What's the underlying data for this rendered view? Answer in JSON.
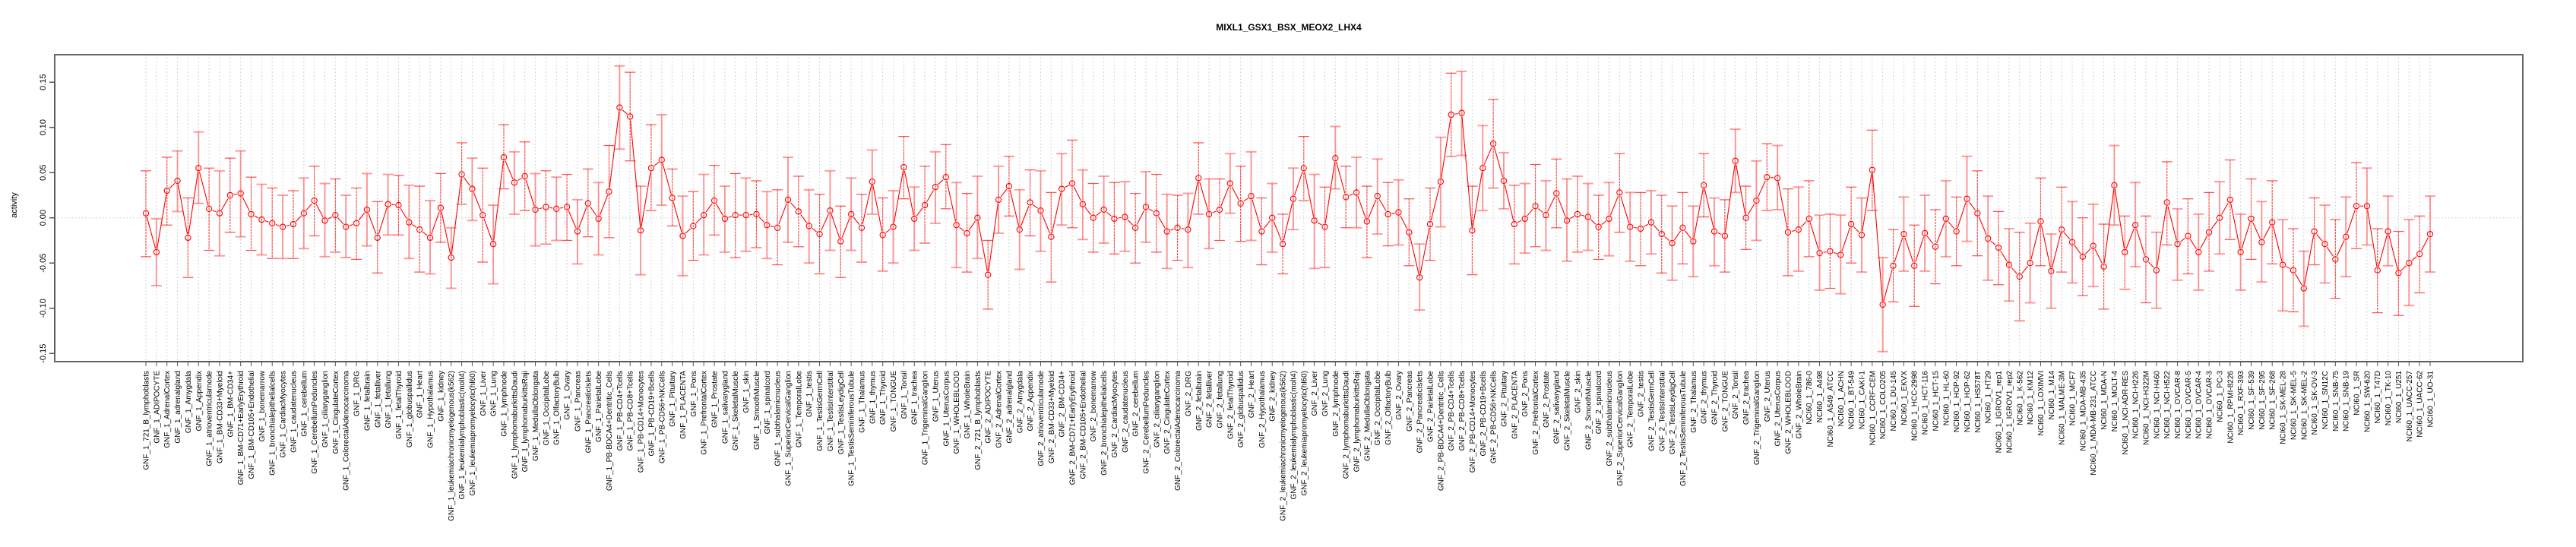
{
  "chart_data": {
    "type": "line",
    "title": "MIXL1_GSX1_BSX_MEOX2_LHX4",
    "xlabel": "",
    "ylabel": "activity",
    "ylim": [
      -0.165,
      0.18
    ],
    "yticks": [
      -0.15,
      -0.1,
      -0.05,
      0.0,
      0.05,
      0.1,
      0.15
    ],
    "ytick_labels": [
      "-0.15",
      "-0.10",
      "-0.05",
      "0.00",
      "0.05",
      "0.10",
      "0.15"
    ],
    "grid": "vertical dotted lines at every category, horizontal dotted line at 0",
    "colors": {
      "series": "#ff0000",
      "errorbar": "#ff3b3b",
      "grid": "#c8c8c8",
      "axis": "#555555"
    },
    "categories": [
      "GNF_1_721_B_lymphoblasts",
      "GNF_1_ADIPOCYTE",
      "GNF_1_AdrenalCortex",
      "GNF_1_adrenalgland",
      "GNF_1_Amygdala",
      "GNF_1_Appendix",
      "GNF_1_atrioventricularnode",
      "GNF_1_BM-CD33+Myeloid",
      "GNF_1_BM-CD34+",
      "GNF_1_BM-CD71+EarlyErythroid",
      "GNF_1_BM-CD105+Endothelial",
      "GNF_1_bonemarrow",
      "GNF_1_bronchialepithelialcells",
      "GNF_1_CardiacMyocytes",
      "GNF_1_caudatenucleus",
      "GNF_1_cerebellum",
      "GNF_1_CerebellumPeduncles",
      "GNF_1_ciliaryganglion",
      "GNF_1_CingulateCortex",
      "GNF_1_ColorectalAdenocarcinoma",
      "GNF_1_DRG",
      "GNF_1_fetalbrain",
      "GNF_1_fetalliver",
      "GNF_1_fetallung",
      "GNF_1_fetalThyroid",
      "GNF_1_globuspallidus",
      "GNF_1_Heart",
      "GNF_1_Hypothalamus",
      "GNF_1_kidney",
      "GNF_1_leukemiachronicmyelogenous(k562)",
      "GNF_1_leukemialymphoblastic(molt4)",
      "GNF_1_leukemiapromyelocytic(hl60)",
      "GNF_1_Liver",
      "GNF_1_Lung",
      "GNF_1_lymphnode",
      "GNF_1_lymphomaburkittsDaudi",
      "GNF_1_lymphomaburkittsRaji",
      "GNF_1_MedullaOblongata",
      "GNF_1_OccipitalLobe",
      "GNF_1_OlfactoryBulb",
      "GNF_1_Ovary",
      "GNF_1_Pancreas",
      "GNF_1_PancreaticIslets",
      "GNF_1_ParietalLobe",
      "GNF_1_PB-BDCA4+Dentritic_Cells",
      "GNF_1_PB-CD4+Tcells",
      "GNF_1_PB-CD8+Tcells",
      "GNF_1_PB-CD14+Monocytes",
      "GNF_1_PB-CD19+Bcells",
      "GNF_1_PB-CD56+NKCells",
      "GNF_1_Pituitary",
      "GNF_1_PLACENTA",
      "GNF_1_Pons",
      "GNF_1_PrefrontalCortex",
      "GNF_1_Prostate",
      "GNF_1_salivarygland",
      "GNF_1_SkeletalMuscle",
      "GNF_1_skin",
      "GNF_1_SmoothMuscle",
      "GNF_1_spinalcord",
      "GNF_1_subthalamicnucleus",
      "GNF_1_SuperiorCervicalGanglion",
      "GNF_1_TemporalLobe",
      "GNF_1_testis",
      "GNF_1_TestisGermCell",
      "GNF_1_TestisInterstitial",
      "GNF_1_TestisLeydigCell",
      "GNF_1_TestisSeminiferousTubule",
      "GNF_1_Thalamus",
      "GNF_1_thymus",
      "GNF_1_Thyroid",
      "GNF_1_TONGUE",
      "GNF_1_Tonsil",
      "GNF_1_trachea",
      "GNF_1_TrigeminalGanglion",
      "GNF_1_Uterus",
      "GNF_1_UterusCorpus",
      "GNF_1_WHOLEBLOOD",
      "GNF_1_WholeBrain",
      "GNF_2_721_B_lymphoblasts",
      "GNF_2_ADIPOCYTE",
      "GNF_2_AdrenalCortex",
      "GNF_2_adrenalgland",
      "GNF_2_Amygdala",
      "GNF_2_Appendix",
      "GNF_2_atrioventricularnode",
      "GNF_2_BM-CD33+Myeloid",
      "GNF_2_BM-CD34+",
      "GNF_2_BM-CD71+EarlyErythroid",
      "GNF_2_BM-CD105+Endothelial",
      "GNF_2_bonemarrow",
      "GNF_2_bronchialepithelialcells",
      "GNF_2_CardiacMyocytes",
      "GNF_2_caudatenucleus",
      "GNF_2_cerebellum",
      "GNF_2_CerebellumPeduncles",
      "GNF_2_ciliaryganglion",
      "GNF_2_CingulateCortex",
      "GNF_2_ColorectalAdenocarcinoma",
      "GNF_2_DRG",
      "GNF_2_fetalbrain",
      "GNF_2_fetalliver",
      "GNF_2_fetallung",
      "GNF_2_fetalThyroid",
      "GNF_2_globuspallidus",
      "GNF_2_Heart",
      "GNF_2_Hypothalamus",
      "GNF_2_kidney",
      "GNF_2_leukemiachronicmyelogenous(k562)",
      "GNF_2_leukemialymphoblastic(molt4)",
      "GNF_2_leukemiapromyelocytic(hl60)",
      "GNF_2_Liver",
      "GNF_2_Lung",
      "GNF_2_lymphnode",
      "GNF_2_lymphomaburkittsDaudi",
      "GNF_2_lymphomaburkittsRaji",
      "GNF_2_MedullaOblongata",
      "GNF_2_OccipitalLobe",
      "GNF_2_OlfactoryBulb",
      "GNF_2_Ovary",
      "GNF_2_Pancreas",
      "GNF_2_PancreaticIslets",
      "GNF_2_ParietalLobe",
      "GNF_2_PB-BDCA4+Dentritic_Cells",
      "GNF_2_PB-CD4+Tcells",
      "GNF_2_PB-CD8+Tcells",
      "GNF_2_PB-CD14+Monocytes",
      "GNF_2_PB-CD19+Bcells",
      "GNF_2_PB-CD56+NKCells",
      "GNF_2_Pituitary",
      "GNF_2_PLACENTA",
      "GNF_2_Pons",
      "GNF_2_PrefrontalCortex",
      "GNF_2_Prostate",
      "GNF_2_salivarygland",
      "GNF_2_SkeletalMuscle",
      "GNF_2_skin",
      "GNF_2_SmoothMuscle",
      "GNF_2_spinalcord",
      "GNF_2_subthalamicnucleus",
      "GNF_2_SuperiorCervicalGanglion",
      "GNF_2_TemporalLobe",
      "GNF_2_testis",
      "GNF_2_TestisGermCell",
      "GNF_2_TestisInterstitial",
      "GNF_2_TestisLeydigCell",
      "GNF_2_TestisSeminiferousTubule",
      "GNF_2_Thalamus",
      "GNF_2_thymus",
      "GNF_2_Thyroid",
      "GNF_2_TONGUE",
      "GNF_2_Tonsil",
      "GNF_2_trachea",
      "GNF_2_TrigeminalGanglion",
      "GNF_2_Uterus",
      "GNF_2_UterusCorpus",
      "GNF_2_WHOLEBLOOD",
      "GNF_2_WholeBrain",
      "NCI60_1_786-0",
      "NCI60_1_A498",
      "NCI60_1_A549_ATCC",
      "NCI60_1_ACHN",
      "NCI60_1_BT-549",
      "NCI60_1_CAKI-1",
      "NCI60_1_CCRF-CEM",
      "NCI60_1_COLO205",
      "NCI60_1_DU-145",
      "NCI60_1_EKVX",
      "NCI60_1_HCC-2998",
      "NCI60_1_HCT-116",
      "NCI60_1_HCT-15",
      "NCI60_1_HL-60",
      "NCI60_1_HOP-92",
      "NCI60_1_HOP-62",
      "NCI60_1_HS578T",
      "NCI60_1_HT29",
      "NCI60_1_IGROV1_rep1",
      "NCI60_1_IGROV1_rep2",
      "NCI60_1_K-562",
      "NCI60_1_KM12",
      "NCI60_1_LOXIMVI",
      "NCI60_1_M14",
      "NCI60_1_MALME-3M",
      "NCI60_1_MCF7",
      "NCI60_1_MDA-MB-435",
      "NCI60_1_MDA-MB-231_ATCC",
      "NCI60_1_MDA-N",
      "NCI60_1_MOLT-4",
      "NCI60_1_NCI-ADR-RES",
      "NCI60_1_NCI-H226",
      "NCI60_1_NCI-H322M",
      "NCI60_1_NCI-H460",
      "NCI60_1_NCI-H522",
      "NCI60_1_OVCAR-8",
      "NCI60_1_OVCAR-5",
      "NCI60_1_OVCAR-4",
      "NCI60_1_OVCAR-3",
      "NCI60_1_PC-3",
      "NCI60_1_RPMI-8226",
      "NCI60_1_RXF-393",
      "NCI60_1_SF-539",
      "NCI60_1_SF-295",
      "NCI60_1_SF-268",
      "NCI60_1_SK-MEL-28",
      "NCI60_1_SK-MEL-5",
      "NCI60_1_SK-MEL-2",
      "NCI60_1_SK-OV-3",
      "NCI60_1_SN12C",
      "NCI60_1_SNB-75",
      "NCI60_1_SNB-19",
      "NCI60_1_SR",
      "NCI60_1_SW-620",
      "NCI60_1_T47D",
      "NCI60_1_TK-10",
      "NCI60_1_U251",
      "NCI60_1_UACC-257",
      "NCI60_1_UACC-62",
      "NCI60_1_UO-31"
    ],
    "series": [
      {
        "name": "mean",
        "values": [
          0.005,
          -0.038,
          0.03,
          0.041,
          -0.022,
          0.055,
          0.01,
          0.005,
          0.025,
          0.027,
          0.004,
          -0.002,
          -0.006,
          -0.01,
          -0.007,
          0.005,
          0.019,
          -0.003,
          0.003,
          -0.01,
          -0.006,
          0.009,
          -0.022,
          0.015,
          0.014,
          -0.005,
          -0.013,
          -0.022,
          0.011,
          -0.044,
          0.048,
          0.032,
          0.003,
          -0.029,
          0.067,
          0.039,
          0.046,
          0.009,
          0.012,
          0.01,
          0.012,
          -0.015,
          0.016,
          -0.001,
          0.029,
          0.122,
          0.112,
          -0.014,
          0.055,
          0.064,
          0.022,
          -0.02,
          -0.009,
          0.003,
          0.019,
          -0.001,
          0.003,
          0.003,
          0.004,
          -0.008,
          -0.011,
          0.02,
          0.007,
          -0.009,
          -0.018,
          0.008,
          -0.026,
          0.004,
          -0.011,
          0.04,
          -0.019,
          -0.01,
          0.056,
          -0.001,
          0.014,
          0.034,
          0.045,
          -0.008,
          -0.017,
          0.0,
          -0.063,
          0.02,
          0.035,
          -0.013,
          0.017,
          0.008,
          -0.021,
          0.032,
          0.038,
          0.015,
          0.0,
          0.009,
          -0.001,
          0.001,
          -0.011,
          0.012,
          0.005,
          -0.015,
          -0.011,
          -0.013,
          0.044,
          0.004,
          0.009,
          0.038,
          0.016,
          0.024,
          -0.015,
          0.0,
          -0.029,
          0.021,
          0.055,
          -0.003,
          -0.01,
          0.066,
          0.023,
          0.028,
          -0.004,
          0.024,
          0.004,
          0.006,
          -0.016,
          -0.066,
          -0.007,
          0.04,
          0.114,
          0.116,
          -0.014,
          0.055,
          0.082,
          0.041,
          -0.007,
          -0.001,
          0.013,
          0.003,
          0.027,
          -0.003,
          0.004,
          0.001,
          -0.01,
          -0.001,
          0.028,
          -0.01,
          -0.012,
          -0.005,
          -0.018,
          -0.028,
          -0.011,
          -0.026,
          0.036,
          -0.015,
          -0.02,
          0.063,
          0.0,
          0.019,
          0.045,
          0.044,
          -0.016,
          -0.013,
          -0.001,
          -0.039,
          -0.037,
          -0.041,
          -0.007,
          -0.019,
          0.053,
          -0.096,
          -0.053,
          -0.018,
          -0.053,
          -0.017,
          -0.032,
          -0.001,
          -0.015,
          0.021,
          0.005,
          -0.023,
          -0.033,
          -0.052,
          -0.065,
          -0.05,
          -0.004,
          -0.059,
          -0.013,
          -0.027,
          -0.043,
          -0.031,
          -0.054,
          0.036,
          -0.038,
          -0.008,
          -0.046,
          -0.058,
          0.017,
          -0.029,
          -0.02,
          -0.038,
          -0.016,
          0.0,
          0.02,
          -0.038,
          -0.001,
          -0.027,
          -0.005,
          -0.052,
          -0.058,
          -0.078,
          -0.015,
          -0.029,
          -0.046,
          -0.021,
          0.013,
          0.013,
          -0.058,
          -0.015,
          -0.061,
          -0.05,
          -0.04,
          -0.018
        ]
      },
      {
        "name": "upper",
        "values": [
          0.052,
          -0.001,
          0.067,
          0.074,
          0.022,
          0.095,
          0.055,
          0.052,
          0.066,
          0.074,
          0.045,
          0.037,
          0.033,
          0.025,
          0.03,
          0.044,
          0.057,
          0.038,
          0.043,
          0.025,
          0.033,
          0.049,
          0.018,
          0.048,
          0.047,
          0.036,
          0.035,
          0.019,
          0.049,
          -0.011,
          0.083,
          0.066,
          0.055,
          0.014,
          0.103,
          0.073,
          0.084,
          0.049,
          0.052,
          0.045,
          0.048,
          0.02,
          0.054,
          0.039,
          0.08,
          0.168,
          0.161,
          0.035,
          0.103,
          0.114,
          0.054,
          0.024,
          0.029,
          0.048,
          0.058,
          0.035,
          0.049,
          0.044,
          0.041,
          0.029,
          0.031,
          0.067,
          0.046,
          0.031,
          0.026,
          0.052,
          0.013,
          0.044,
          0.026,
          0.075,
          0.022,
          0.03,
          0.09,
          0.034,
          0.057,
          0.073,
          0.081,
          0.039,
          0.027,
          0.046,
          -0.025,
          0.057,
          0.068,
          0.031,
          0.053,
          0.052,
          0.028,
          0.071,
          0.086,
          0.053,
          0.038,
          0.046,
          0.039,
          0.04,
          0.027,
          0.051,
          0.048,
          0.026,
          0.025,
          0.027,
          0.083,
          0.043,
          0.043,
          0.071,
          0.057,
          0.073,
          0.022,
          0.038,
          0.004,
          0.055,
          0.09,
          0.048,
          0.034,
          0.101,
          0.057,
          0.067,
          0.035,
          0.065,
          0.039,
          0.042,
          0.021,
          -0.029,
          0.033,
          0.089,
          0.16,
          0.162,
          0.035,
          0.102,
          0.131,
          0.072,
          0.036,
          0.038,
          0.059,
          0.041,
          0.065,
          0.043,
          0.046,
          0.038,
          0.025,
          0.039,
          0.071,
          0.028,
          0.028,
          0.03,
          0.025,
          0.013,
          0.028,
          0.013,
          0.071,
          0.022,
          0.02,
          0.098,
          0.035,
          0.063,
          0.082,
          0.08,
          0.032,
          0.034,
          0.041,
          0.003,
          0.004,
          0.003,
          0.034,
          0.022,
          0.097,
          -0.044,
          -0.013,
          0.023,
          -0.008,
          0.025,
          0.009,
          0.041,
          0.023,
          0.068,
          0.052,
          0.024,
          0.007,
          -0.012,
          -0.016,
          -0.006,
          0.044,
          -0.018,
          0.034,
          0.018,
          0.0,
          0.015,
          -0.007,
          0.08,
          0.002,
          0.039,
          0.002,
          -0.016,
          0.062,
          0.01,
          0.021,
          0.004,
          0.028,
          0.04,
          0.064,
          0.004,
          0.043,
          0.018,
          0.041,
          -0.002,
          -0.012,
          -0.037,
          0.022,
          0.014,
          -0.002,
          0.023,
          0.061,
          0.055,
          -0.012,
          0.024,
          -0.015,
          -0.002,
          0.002,
          0.024
        ]
      },
      {
        "name": "lower",
        "values": [
          -0.043,
          -0.075,
          -0.008,
          0.007,
          -0.066,
          0.016,
          -0.036,
          -0.042,
          -0.016,
          -0.021,
          -0.036,
          -0.041,
          -0.045,
          -0.045,
          -0.045,
          -0.034,
          -0.02,
          -0.043,
          -0.038,
          -0.044,
          -0.046,
          -0.031,
          -0.061,
          -0.019,
          -0.019,
          -0.045,
          -0.06,
          -0.062,
          -0.027,
          -0.078,
          0.015,
          -0.003,
          -0.049,
          -0.073,
          0.032,
          0.004,
          0.008,
          -0.031,
          -0.029,
          -0.025,
          -0.025,
          -0.051,
          -0.021,
          -0.041,
          -0.022,
          0.076,
          0.063,
          -0.063,
          0.008,
          0.014,
          -0.009,
          -0.064,
          -0.047,
          -0.041,
          -0.019,
          -0.038,
          -0.044,
          -0.037,
          -0.033,
          -0.045,
          -0.052,
          -0.027,
          -0.032,
          -0.05,
          -0.062,
          -0.036,
          -0.066,
          -0.036,
          -0.049,
          0.004,
          -0.059,
          -0.05,
          0.021,
          -0.036,
          -0.028,
          -0.006,
          0.01,
          -0.055,
          -0.06,
          -0.045,
          -0.101,
          -0.017,
          0.002,
          -0.057,
          -0.02,
          -0.037,
          -0.071,
          -0.008,
          -0.011,
          -0.024,
          -0.038,
          -0.028,
          -0.04,
          -0.037,
          -0.05,
          -0.027,
          -0.038,
          -0.056,
          -0.047,
          -0.055,
          0.004,
          -0.034,
          -0.025,
          0.005,
          -0.026,
          -0.025,
          -0.052,
          -0.038,
          -0.062,
          -0.013,
          0.019,
          -0.056,
          -0.055,
          0.032,
          -0.011,
          -0.011,
          -0.044,
          -0.018,
          -0.031,
          -0.03,
          -0.053,
          -0.102,
          -0.047,
          -0.01,
          0.068,
          0.069,
          -0.063,
          0.008,
          0.033,
          0.01,
          -0.051,
          -0.039,
          -0.032,
          -0.036,
          -0.011,
          -0.048,
          -0.038,
          -0.036,
          -0.046,
          -0.042,
          -0.016,
          -0.048,
          -0.053,
          -0.04,
          -0.061,
          -0.069,
          -0.051,
          -0.065,
          0.001,
          -0.053,
          -0.06,
          0.028,
          -0.035,
          -0.025,
          0.008,
          0.009,
          -0.064,
          -0.059,
          -0.043,
          -0.08,
          -0.078,
          -0.084,
          -0.05,
          -0.06,
          0.008,
          -0.148,
          -0.093,
          -0.059,
          -0.098,
          -0.059,
          -0.073,
          -0.043,
          -0.053,
          -0.026,
          -0.042,
          -0.069,
          -0.074,
          -0.092,
          -0.114,
          -0.094,
          -0.053,
          -0.1,
          -0.06,
          -0.072,
          -0.086,
          -0.076,
          -0.101,
          -0.008,
          -0.079,
          -0.054,
          -0.094,
          -0.1,
          -0.03,
          -0.069,
          -0.062,
          -0.08,
          -0.059,
          -0.04,
          -0.024,
          -0.08,
          -0.046,
          -0.071,
          -0.051,
          -0.103,
          -0.104,
          -0.12,
          -0.052,
          -0.072,
          -0.089,
          -0.065,
          -0.034,
          -0.03,
          -0.105,
          -0.053,
          -0.108,
          -0.097,
          -0.083,
          -0.06
        ]
      }
    ]
  }
}
